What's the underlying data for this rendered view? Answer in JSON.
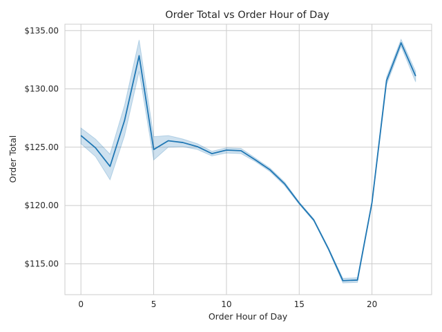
{
  "chart_data": {
    "type": "line",
    "title": "Order Total vs Order Hour of Day",
    "xlabel": "Order Hour of Day",
    "ylabel": "Order Total",
    "x_ticks": [
      "0",
      "5",
      "10",
      "15",
      "20"
    ],
    "y_ticks": [
      "$115.00",
      "$120.00",
      "$125.00",
      "$130.00",
      "$135.00"
    ],
    "xlim": [
      -1.1,
      24.1
    ],
    "ylim": [
      112.35,
      135.55
    ],
    "grid": true,
    "series": [
      {
        "x": [
          0,
          1,
          2,
          3,
          4,
          5,
          6,
          7,
          8,
          9,
          10,
          11,
          12,
          13,
          14,
          15,
          16,
          17,
          18,
          19,
          20,
          21,
          22,
          23
        ],
        "values": [
          126.0,
          124.95,
          123.35,
          127.3,
          132.85,
          124.8,
          125.55,
          125.4,
          125.05,
          124.45,
          124.75,
          124.7,
          123.9,
          123.05,
          121.85,
          120.2,
          118.75,
          116.3,
          113.55,
          113.6,
          120.25,
          130.7,
          133.95,
          131.1
        ],
        "ci_low": [
          125.3,
          124.2,
          122.2,
          126.0,
          131.5,
          123.9,
          125.0,
          125.05,
          124.8,
          124.25,
          124.5,
          124.45,
          123.75,
          122.9,
          121.7,
          120.1,
          118.65,
          116.2,
          113.35,
          113.4,
          120.1,
          130.35,
          133.65,
          130.6
        ],
        "ci_high": [
          126.65,
          125.7,
          124.4,
          128.6,
          134.2,
          125.9,
          126.0,
          125.7,
          125.3,
          124.65,
          124.95,
          124.9,
          124.05,
          123.2,
          122.0,
          120.3,
          118.85,
          116.4,
          113.75,
          113.8,
          120.4,
          131.0,
          134.25,
          131.5
        ],
        "color": "#1f77b4"
      }
    ]
  }
}
